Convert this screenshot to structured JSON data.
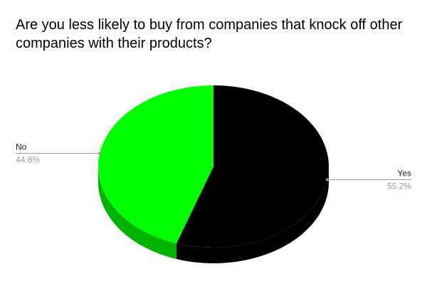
{
  "chart_data": {
    "type": "pie",
    "title": "Are you less likely to buy from companies that knock off other companies with their products?",
    "categories": [
      "Yes",
      "No"
    ],
    "values": [
      55.2,
      44.8
    ],
    "value_labels": [
      "55.2%",
      "44.8%"
    ],
    "colors": [
      "#000000",
      "#00ff00"
    ]
  }
}
